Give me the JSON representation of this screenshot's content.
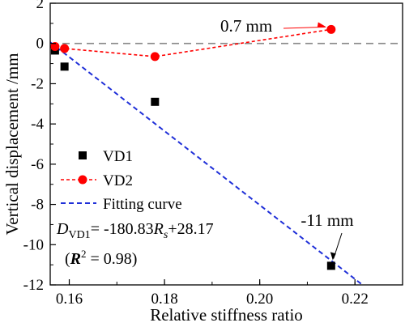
{
  "chart_data": {
    "type": "scatter",
    "xlabel": "Relative stiffness ratio",
    "ylabel": "Vertical displacement /mm",
    "xlim": [
      0.156,
      0.23
    ],
    "ylim": [
      -12,
      2
    ],
    "xticks": [
      0.16,
      0.18,
      0.2,
      0.22
    ],
    "xtick_labels": [
      "0.16",
      "0.18",
      "0.20",
      "0.22"
    ],
    "yticks": [
      2,
      0,
      -2,
      -4,
      -6,
      -8,
      -10,
      -12
    ],
    "ytick_labels": [
      "2",
      "0",
      "-2",
      "-4",
      "-6",
      "-8",
      "-10",
      "-12"
    ],
    "grid": false,
    "reference_line_y": 0,
    "series": [
      {
        "name": "VD1",
        "marker": "square",
        "color": "#000000",
        "x": [
          0.157,
          0.159,
          0.178,
          0.215
        ],
        "y": [
          -0.35,
          -1.15,
          -2.9,
          -11.05
        ]
      },
      {
        "name": "VD2",
        "marker": "circle",
        "line": "dashed",
        "color": "#ff0000",
        "x": [
          0.157,
          0.159,
          0.178,
          0.215
        ],
        "y": [
          -0.15,
          -0.25,
          -0.65,
          0.7
        ]
      },
      {
        "name": "Fitting curve",
        "line": "dashed",
        "color": "#1f2fd8",
        "x": [
          0.156,
          0.2215
        ],
        "y": [
          0.0608,
          -11.9843
        ]
      }
    ],
    "annotations": [
      {
        "text": "0.7 mm",
        "x": 0.215,
        "y": 0.7,
        "color": "#ff0000"
      },
      {
        "text": "-11 mm",
        "x": 0.215,
        "y": -11.05,
        "color": "#000000"
      }
    ],
    "equation": {
      "d": "D",
      "d_sub": "VD1",
      "eq": "= -180.83",
      "r": "R",
      "r_sub": "s",
      "tail": "+28.17",
      "r2_open": "(",
      "r2_r": "R",
      "r2_sup": "2",
      "r2_value": " = 0.98)"
    },
    "legend_position": "lower-left"
  }
}
